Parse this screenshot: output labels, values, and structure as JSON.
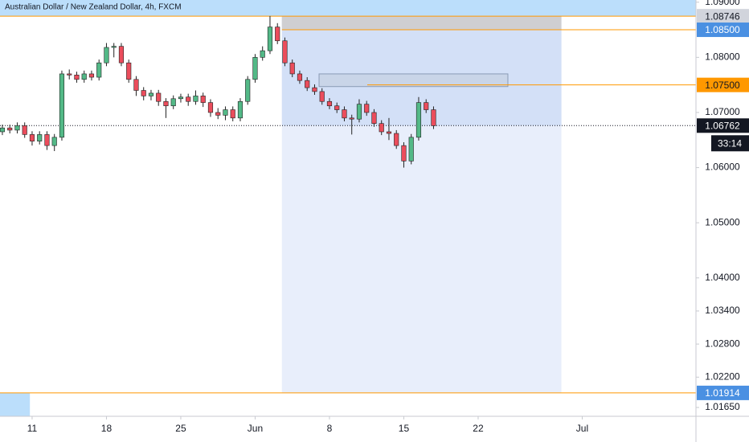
{
  "chart_data": {
    "type": "candlestick",
    "title": "Australian Dollar / New Zealand Dollar, 4h, FXCM",
    "x": [
      -2,
      -1.5,
      -1,
      -0.5,
      0,
      0.5,
      1,
      1.5,
      2,
      2.5,
      3,
      3.5,
      4,
      4.5,
      5,
      5.5,
      6,
      6.5,
      7,
      7.5,
      8,
      8.5,
      9,
      9.5,
      10,
      10.5,
      11,
      11.5,
      12,
      12.5,
      13,
      13.5,
      14,
      14.5,
      15,
      15.5,
      16,
      16.5,
      17,
      17.5,
      18,
      18.5,
      19,
      19.5,
      20,
      20.5,
      21,
      21.5,
      22,
      22.5,
      23,
      23.5,
      24,
      24.5,
      25,
      25.5,
      26,
      26.5,
      27
    ],
    "open": [
      1.0665,
      1.0672,
      1.0668,
      1.0676,
      1.066,
      1.0648,
      1.066,
      1.064,
      1.0655,
      1.077,
      1.0768,
      1.076,
      1.077,
      1.0764,
      1.079,
      1.0818,
      1.082,
      1.079,
      1.076,
      1.074,
      1.073,
      1.0735,
      1.072,
      1.0712,
      1.0725,
      1.0728,
      1.072,
      1.073,
      1.0718,
      1.07,
      1.0695,
      1.0705,
      1.069,
      1.072,
      1.076,
      1.08,
      1.0812,
      1.0855,
      1.083,
      1.079,
      1.077,
      1.0758,
      1.0745,
      1.0738,
      1.072,
      1.0712,
      1.0705,
      1.069,
      1.0688,
      1.0715,
      1.07,
      1.068,
      1.0665,
      1.0662,
      1.064,
      1.0612,
      1.0655,
      1.0718,
      1.0705
    ],
    "high": [
      1.0678,
      1.0678,
      1.0682,
      1.0682,
      1.0666,
      1.0666,
      1.0666,
      1.0661,
      1.0776,
      1.0778,
      1.0774,
      1.0776,
      1.0776,
      1.0796,
      1.0826,
      1.0826,
      1.0826,
      1.0796,
      1.0766,
      1.0746,
      1.0741,
      1.0741,
      1.0726,
      1.0731,
      1.0734,
      1.0734,
      1.074,
      1.0736,
      1.0724,
      1.0708,
      1.0711,
      1.0711,
      1.0726,
      1.0766,
      1.0806,
      1.082,
      1.0875,
      1.0862,
      1.0836,
      1.0796,
      1.0776,
      1.0764,
      1.0751,
      1.0744,
      1.0726,
      1.0718,
      1.0711,
      1.0696,
      1.0724,
      1.0721,
      1.0706,
      1.0686,
      1.069,
      1.0668,
      1.0646,
      1.0661,
      1.0728,
      1.0724,
      1.0711
    ],
    "low": [
      1.0659,
      1.0662,
      1.0662,
      1.0654,
      1.064,
      1.0642,
      1.0632,
      1.063,
      1.0649,
      1.076,
      1.0754,
      1.0754,
      1.0758,
      1.0758,
      1.0784,
      1.08,
      1.0784,
      1.0754,
      1.073,
      1.0722,
      1.0722,
      1.0712,
      1.069,
      1.0706,
      1.0718,
      1.0712,
      1.0714,
      1.071,
      1.0692,
      1.0688,
      1.0686,
      1.0684,
      1.0684,
      1.0714,
      1.0754,
      1.0794,
      1.0806,
      1.0824,
      1.0784,
      1.0764,
      1.0752,
      1.0739,
      1.0732,
      1.0714,
      1.0706,
      1.0699,
      1.0684,
      1.066,
      1.0682,
      1.0694,
      1.0674,
      1.0659,
      1.065,
      1.0634,
      1.06,
      1.0606,
      1.0649,
      1.0699,
      1.067
    ],
    "close": [
      1.0672,
      1.0668,
      1.0676,
      1.066,
      1.0648,
      1.066,
      1.064,
      1.0655,
      1.077,
      1.0768,
      1.076,
      1.077,
      1.0764,
      1.079,
      1.0818,
      1.082,
      1.079,
      1.076,
      1.074,
      1.073,
      1.0735,
      1.072,
      1.0712,
      1.0725,
      1.0728,
      1.072,
      1.073,
      1.0718,
      1.07,
      1.0695,
      1.0705,
      1.069,
      1.072,
      1.076,
      1.08,
      1.0812,
      1.0855,
      1.083,
      1.079,
      1.077,
      1.0758,
      1.0745,
      1.0738,
      1.072,
      1.0712,
      1.0705,
      1.069,
      1.0688,
      1.0715,
      1.07,
      1.068,
      1.0665,
      1.0662,
      1.064,
      1.0612,
      1.0655,
      1.0718,
      1.0705,
      1.0676
    ],
    "up_color": "#53b987",
    "down_color": "#eb4d5c",
    "wick_color": "#222222",
    "xlim": [
      -2.16,
      44.65
    ],
    "ylim": [
      1.0149,
      1.0904
    ],
    "xticks": [
      {
        "value": 0,
        "label": "11"
      },
      {
        "value": 5,
        "label": "18"
      },
      {
        "value": 10,
        "label": "25"
      },
      {
        "value": 15,
        "label": "Jun"
      },
      {
        "value": 20,
        "label": "8"
      },
      {
        "value": 25,
        "label": "15"
      },
      {
        "value": 30,
        "label": "22"
      },
      {
        "value": 37,
        "label": "Jul"
      }
    ],
    "yticks": [
      {
        "value": 1.09,
        "label": "1.09000"
      },
      {
        "value": 1.08,
        "label": "1.08000"
      },
      {
        "value": 1.07,
        "label": "1.07000"
      },
      {
        "value": 1.06,
        "label": "1.06000"
      },
      {
        "value": 1.05,
        "label": "1.05000"
      },
      {
        "value": 1.04,
        "label": "1.04000"
      },
      {
        "value": 1.034,
        "label": "1.03400"
      },
      {
        "value": 1.028,
        "label": "1.02800"
      },
      {
        "value": 1.022,
        "label": "1.02200"
      },
      {
        "value": 1.0165,
        "label": "1.01650"
      }
    ],
    "zones": [
      {
        "x": [
          -2.16,
          44.65
        ],
        "y": [
          1.08746,
          1.0904
        ],
        "color": "#bbdefb"
      },
      {
        "x": [
          -2.16,
          -0.15
        ],
        "y": [
          1.0149,
          1.01914
        ],
        "color": "#bbdefb"
      },
      {
        "x": [
          16.8,
          35.6
        ],
        "y": [
          1.01914,
          1.08746
        ],
        "color": "#e8eefb"
      },
      {
        "x": [
          16.8,
          35.6
        ],
        "y": [
          1.06762,
          1.08746
        ],
        "color": "#d3e0f7"
      },
      {
        "x": [
          16.8,
          35.6
        ],
        "y": [
          1.085,
          1.08746
        ],
        "color": "#cfcfd2"
      },
      {
        "x": [
          19.3,
          32.0
        ],
        "y": [
          1.0747,
          1.077
        ],
        "color": "#c9d5e8"
      }
    ],
    "price_tags": [
      {
        "value": 1.08746,
        "label": "1.08746",
        "bg": "#d1d4dc",
        "fg": "#131722",
        "line": "#ff9800"
      },
      {
        "value": 1.085,
        "label": "1.08500",
        "bg": "#4a90e2",
        "fg": "#ffffff",
        "line": "#ff9800"
      },
      {
        "value": 1.075,
        "label": "1.07500",
        "bg": "#ff9800",
        "fg": "#131722",
        "line": "#ff9800"
      },
      {
        "value": 1.06762,
        "label": "1.06762",
        "bg": "#131722",
        "fg": "#ffffff",
        "line": "#131722",
        "line_style": "dotted"
      },
      {
        "value": 1.01914,
        "label": "1.01914",
        "bg": "#4a90e2",
        "fg": "#ffffff",
        "line": "#ff9800"
      }
    ],
    "countdown": "33:14"
  }
}
